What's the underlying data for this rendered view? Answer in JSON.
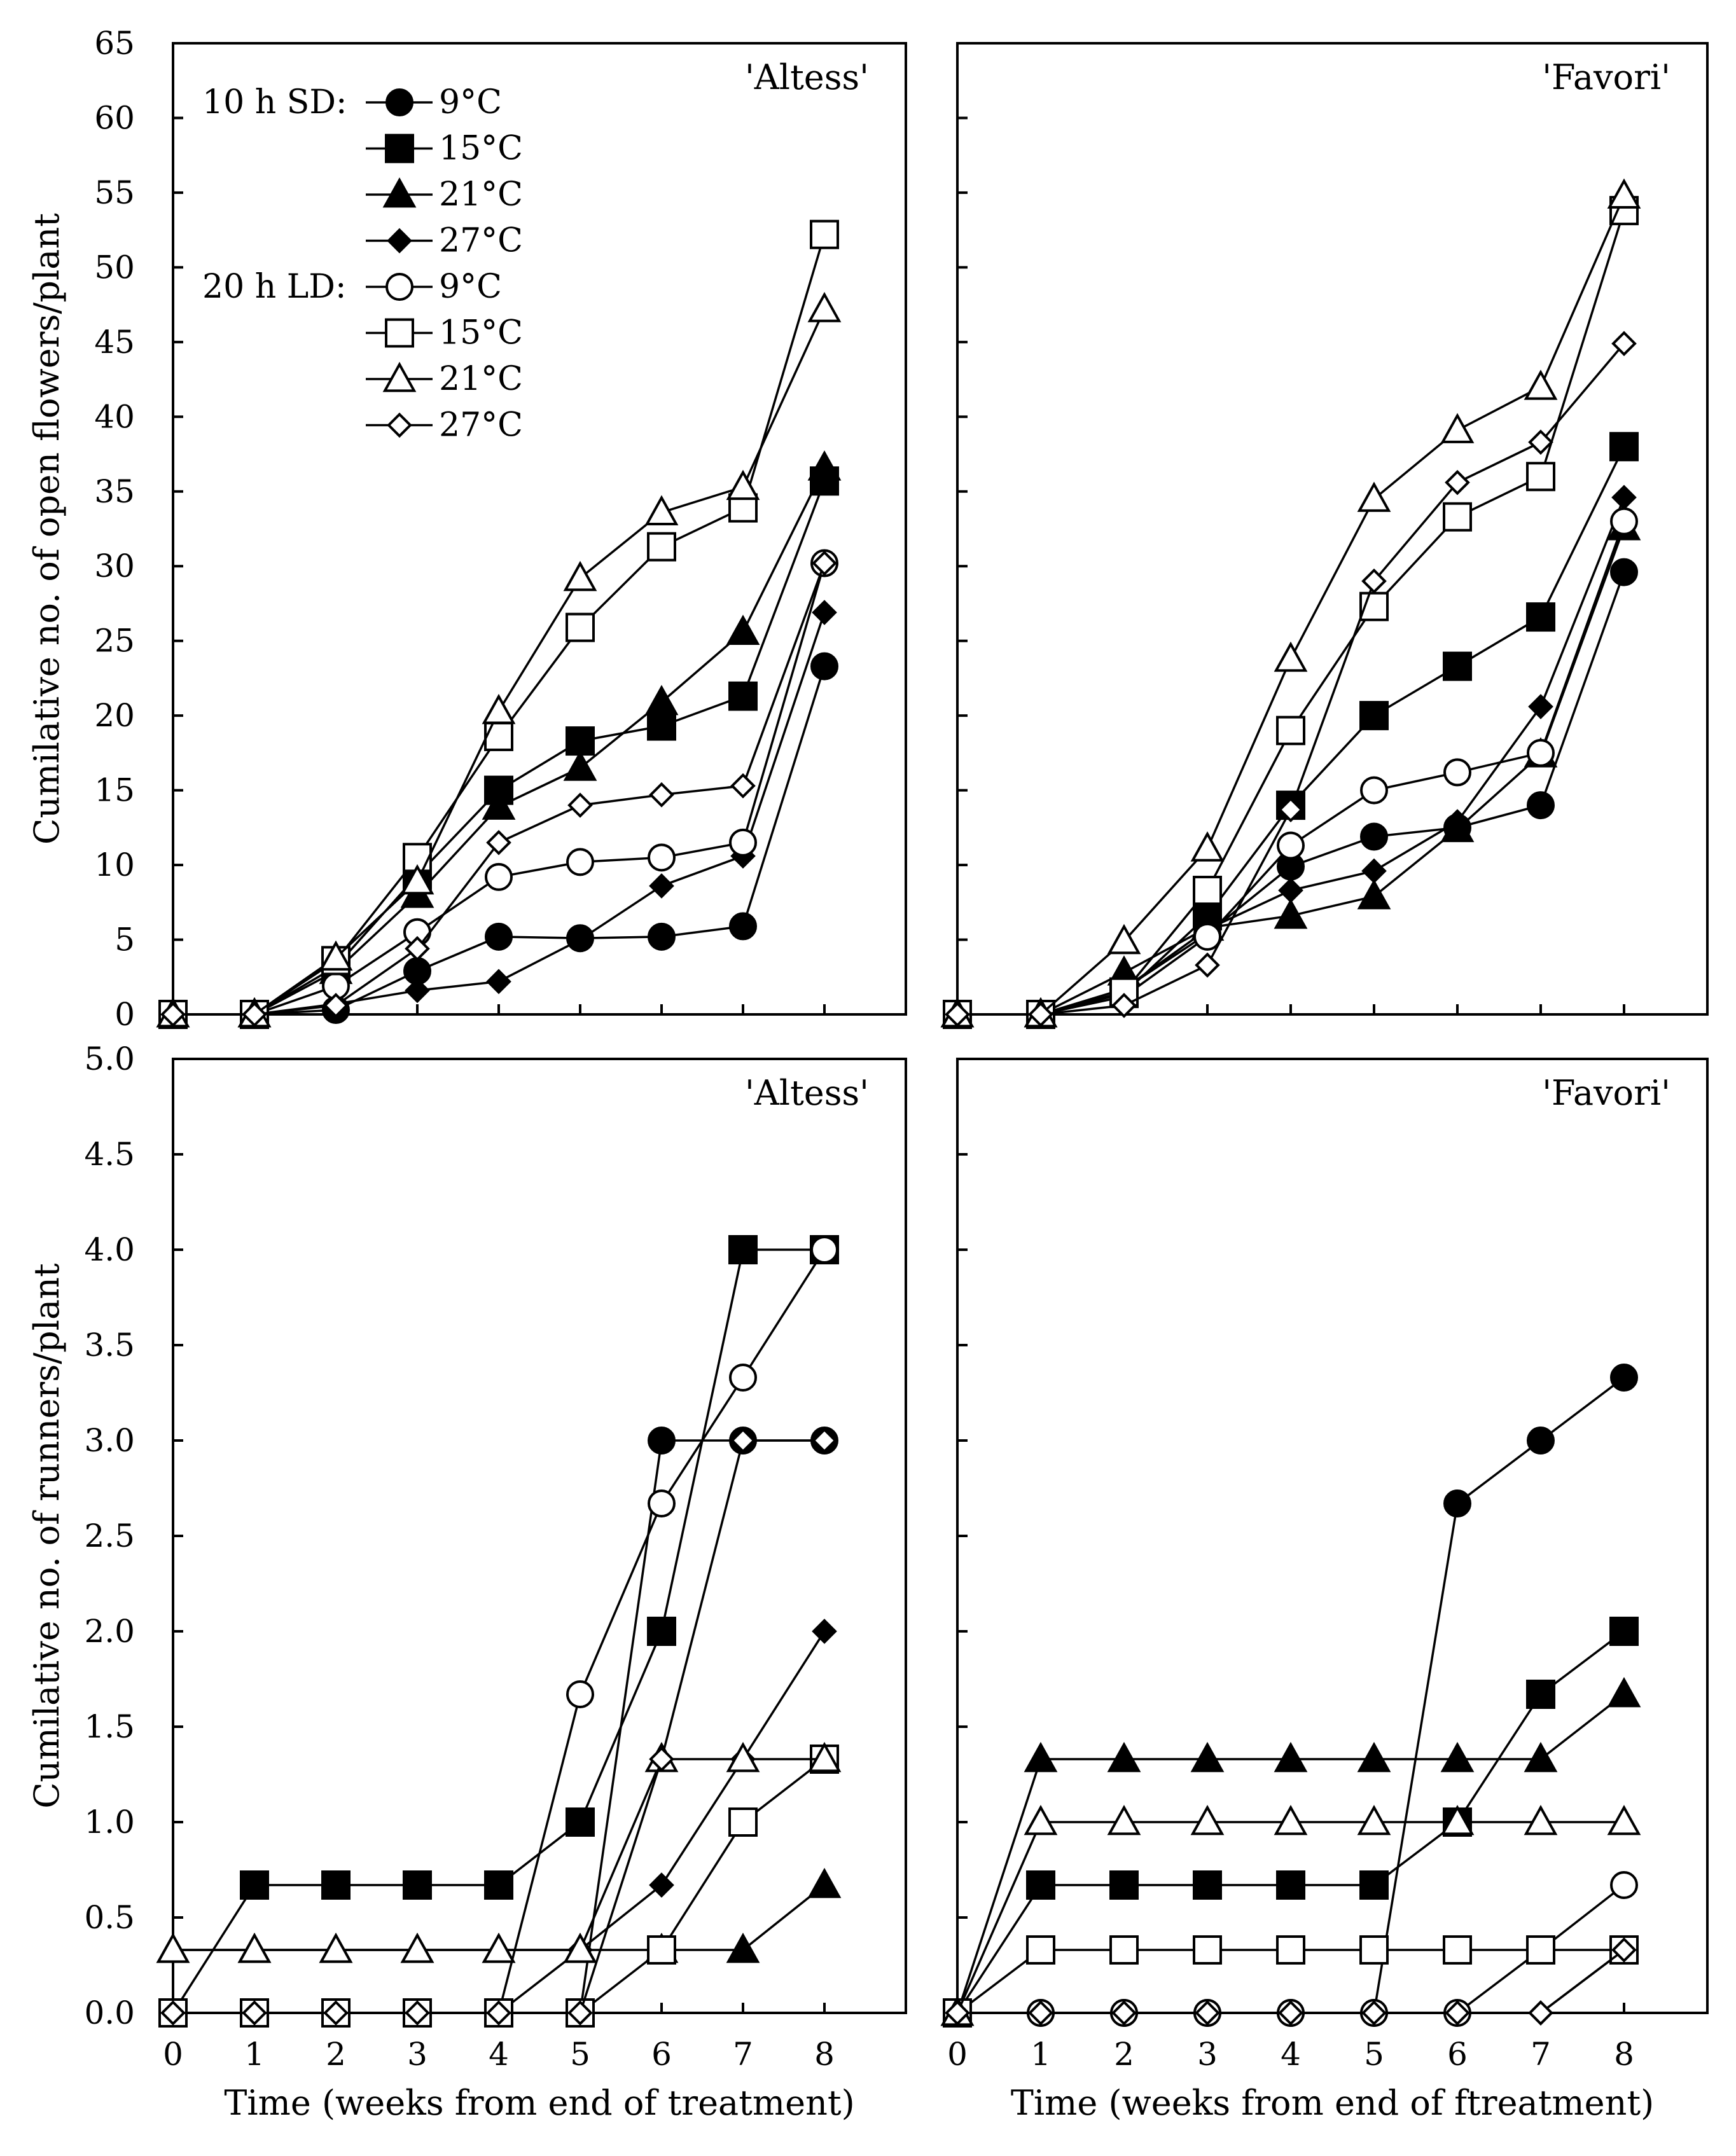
{
  "chart_data": [
    {
      "id": "altess-flowers",
      "type": "line",
      "title": "'Altess'",
      "ylabel": "Cumilative no. of open flowers/plant",
      "xlabel": "",
      "ylim": [
        0,
        65
      ],
      "yticks": [
        0,
        5,
        10,
        15,
        20,
        25,
        30,
        35,
        40,
        45,
        50,
        55,
        60,
        65
      ],
      "ytick_labels": [
        "0",
        "5",
        "10",
        "15",
        "20",
        "25",
        "30",
        "35",
        "40",
        "45",
        "50",
        "55",
        "60",
        "65"
      ],
      "xlim": [
        0,
        9
      ],
      "x": [
        0,
        1,
        2,
        3,
        4,
        5,
        6,
        7,
        8
      ],
      "xtick_labels": [],
      "legend": {
        "sd_title": "10 h SD:",
        "ld_title": "20 h LD:",
        "labels": [
          "9°C",
          "15°C",
          "21°C",
          "27°C",
          "9°C",
          "15°C",
          "21°C",
          "27°C"
        ]
      },
      "series": [
        {
          "name": "10 h SD 9°C",
          "marker": "circle",
          "filled": true,
          "values": [
            0,
            0,
            0.3,
            2.9,
            5.2,
            5.1,
            5.2,
            5.9,
            23.3
          ]
        },
        {
          "name": "10 h SD 15°C",
          "marker": "square",
          "filled": true,
          "values": [
            0,
            0,
            3.2,
            9.3,
            15.0,
            18.3,
            19.3,
            21.3,
            35.7
          ]
        },
        {
          "name": "10 h SD 21°C",
          "marker": "triangle",
          "filled": true,
          "values": [
            0,
            0,
            2.9,
            8.0,
            13.9,
            16.5,
            20.9,
            25.6,
            36.6
          ]
        },
        {
          "name": "10 h SD 27°C",
          "marker": "diamond",
          "filled": true,
          "values": [
            0,
            0,
            0.7,
            1.6,
            2.2,
            5.0,
            8.6,
            10.6,
            26.9
          ]
        },
        {
          "name": "20 h LD 9°C",
          "marker": "circle",
          "filled": false,
          "values": [
            0,
            0,
            1.9,
            5.5,
            9.2,
            10.2,
            10.5,
            11.5,
            30.2
          ]
        },
        {
          "name": "20 h LD 15°C",
          "marker": "square",
          "filled": false,
          "values": [
            0,
            0,
            3.6,
            10.5,
            18.6,
            25.9,
            31.3,
            33.9,
            52.2
          ]
        },
        {
          "name": "20 h LD 21°C",
          "marker": "triangle",
          "filled": false,
          "values": [
            0,
            0,
            3.8,
            8.9,
            20.3,
            29.2,
            33.6,
            35.3,
            47.2
          ]
        },
        {
          "name": "20 h LD 27°C",
          "marker": "diamond",
          "filled": false,
          "values": [
            0,
            0,
            0.6,
            4.4,
            11.5,
            14.0,
            14.7,
            15.3,
            30.2
          ]
        }
      ]
    },
    {
      "id": "favori-flowers",
      "type": "line",
      "title": "'Favori'",
      "ylabel": "",
      "xlabel": "",
      "ylim": [
        0,
        65
      ],
      "yticks": [
        0,
        5,
        10,
        15,
        20,
        25,
        30,
        35,
        40,
        45,
        50,
        55,
        60,
        65
      ],
      "ytick_labels": [],
      "xlim": [
        0,
        9
      ],
      "x": [
        0,
        1,
        2,
        3,
        4,
        5,
        6,
        7,
        8
      ],
      "xtick_labels": [],
      "series": [
        {
          "name": "10 h SD 9°C",
          "marker": "circle",
          "filled": true,
          "values": [
            0,
            0,
            1.7,
            5.4,
            9.9,
            11.9,
            12.5,
            14.0,
            29.6
          ]
        },
        {
          "name": "10 h SD 15°C",
          "marker": "square",
          "filled": true,
          "values": [
            0,
            0,
            1.4,
            6.6,
            14.0,
            20.0,
            23.3,
            26.6,
            38.0
          ]
        },
        {
          "name": "10 h SD 21°C",
          "marker": "triangle",
          "filled": true,
          "values": [
            0,
            0,
            2.8,
            5.8,
            6.6,
            7.9,
            12.4,
            17.4,
            32.6
          ]
        },
        {
          "name": "10 h SD 27°C",
          "marker": "diamond",
          "filled": true,
          "values": [
            0,
            0,
            1.7,
            5.7,
            8.3,
            9.6,
            12.9,
            20.6,
            34.6
          ]
        },
        {
          "name": "20 h LD 9°C",
          "marker": "circle",
          "filled": false,
          "values": [
            0,
            0,
            1.2,
            5.2,
            11.3,
            15.0,
            16.2,
            17.5,
            33.0
          ]
        },
        {
          "name": "20 h LD 15°C",
          "marker": "square",
          "filled": false,
          "values": [
            0,
            0,
            1.5,
            8.3,
            19.0,
            27.3,
            33.3,
            36.0,
            53.8
          ]
        },
        {
          "name": "20 h LD 21°C",
          "marker": "triangle",
          "filled": false,
          "values": [
            0,
            0,
            4.9,
            11.1,
            23.8,
            34.5,
            39.1,
            42.0,
            54.8
          ]
        },
        {
          "name": "20 h LD 27°C",
          "marker": "diamond",
          "filled": false,
          "values": [
            0,
            0,
            0.6,
            3.3,
            13.7,
            29.0,
            35.6,
            38.3,
            44.9
          ]
        }
      ]
    },
    {
      "id": "altess-runners",
      "type": "line",
      "title": "'Altess'",
      "ylabel": "Cumilative no. of runners/plant",
      "xlabel": "Time (weeks from end  of treatment)",
      "ylim": [
        0,
        5
      ],
      "yticks": [
        0,
        0.5,
        1,
        1.5,
        2,
        2.5,
        3,
        3.5,
        4,
        4.5,
        5
      ],
      "ytick_labels": [
        "0.0",
        "0.5",
        "1.0",
        "1.5",
        "2.0",
        "2.5",
        "3.0",
        "3.5",
        "4.0",
        "4.5",
        "5.0"
      ],
      "xlim": [
        0,
        9
      ],
      "x": [
        0,
        1,
        2,
        3,
        4,
        5,
        6,
        7,
        8
      ],
      "xtick_labels": [
        "0",
        "1",
        "2",
        "3",
        "4",
        "5",
        "6",
        "7",
        "8"
      ],
      "series": [
        {
          "name": "10 h SD 9°C",
          "marker": "circle",
          "filled": true,
          "values": [
            0,
            0,
            0,
            0,
            0,
            0,
            3.0,
            3.0,
            3.0
          ]
        },
        {
          "name": "10 h SD 15°C",
          "marker": "square",
          "filled": true,
          "values": [
            0,
            0.67,
            0.67,
            0.67,
            0.67,
            1.0,
            2.0,
            4.0,
            4.0
          ]
        },
        {
          "name": "10 h SD 21°C",
          "marker": "triangle",
          "filled": true,
          "values": [
            0.33,
            0.33,
            0.33,
            0.33,
            0.33,
            0.33,
            0.33,
            0.33,
            0.67
          ]
        },
        {
          "name": "10 h SD 27°C",
          "marker": "diamond",
          "filled": true,
          "values": [
            0,
            0,
            0,
            0,
            0,
            0.33,
            0.67,
            1.33,
            2.0
          ]
        },
        {
          "name": "20 h LD 9°C",
          "marker": "circle",
          "filled": false,
          "values": [
            0,
            0,
            0,
            0,
            0,
            1.67,
            2.67,
            3.33,
            4.0
          ]
        },
        {
          "name": "20 h LD 15°C",
          "marker": "square",
          "filled": false,
          "values": [
            0,
            0,
            0,
            0,
            0,
            0,
            0.33,
            1.0,
            1.33
          ]
        },
        {
          "name": "20 h LD 21°C",
          "marker": "triangle",
          "filled": false,
          "values": [
            0.33,
            0.33,
            0.33,
            0.33,
            0.33,
            0.33,
            1.33,
            1.33,
            1.33
          ]
        },
        {
          "name": "20 h LD 27°C",
          "marker": "diamond",
          "filled": false,
          "values": [
            0,
            0,
            0,
            0,
            0,
            0,
            1.33,
            3.0,
            3.0
          ]
        }
      ]
    },
    {
      "id": "favori-runners",
      "type": "line",
      "title": "'Favori'",
      "ylabel": "",
      "xlabel": "Time (weeks from end  of ftreatment)",
      "ylim": [
        0,
        5
      ],
      "yticks": [
        0,
        0.5,
        1,
        1.5,
        2,
        2.5,
        3,
        3.5,
        4,
        4.5,
        5
      ],
      "ytick_labels": [],
      "xlim": [
        0,
        9
      ],
      "x": [
        0,
        1,
        2,
        3,
        4,
        5,
        6,
        7,
        8
      ],
      "xtick_labels": [
        "0",
        "1",
        "2",
        "3",
        "4",
        "5",
        "6",
        "7",
        "8"
      ],
      "series": [
        {
          "name": "10 h SD 9°C",
          "marker": "circle",
          "filled": true,
          "values": [
            0,
            0,
            0,
            0,
            0,
            0,
            2.67,
            3.0,
            3.33
          ]
        },
        {
          "name": "10 h SD 15°C",
          "marker": "square",
          "filled": true,
          "values": [
            0,
            0.67,
            0.67,
            0.67,
            0.67,
            0.67,
            1.0,
            1.67,
            2.0
          ]
        },
        {
          "name": "10 h SD 21°C",
          "marker": "triangle",
          "filled": true,
          "values": [
            0,
            1.33,
            1.33,
            1.33,
            1.33,
            1.33,
            1.33,
            1.33,
            1.67
          ]
        },
        {
          "name": "10 h SD 27°C",
          "marker": "diamond",
          "filled": true,
          "values": [
            0,
            0,
            0,
            0,
            0,
            0,
            0,
            0,
            0.33
          ]
        },
        {
          "name": "20 h LD 9°C",
          "marker": "circle",
          "filled": false,
          "values": [
            0,
            0,
            0,
            0,
            0,
            0,
            0,
            0.33,
            0.67
          ]
        },
        {
          "name": "20 h LD 15°C",
          "marker": "square",
          "filled": false,
          "values": [
            0,
            0.33,
            0.33,
            0.33,
            0.33,
            0.33,
            0.33,
            0.33,
            0.33
          ]
        },
        {
          "name": "20 h LD 21°C",
          "marker": "triangle",
          "filled": false,
          "values": [
            0,
            1.0,
            1.0,
            1.0,
            1.0,
            1.0,
            1.0,
            1.0,
            1.0
          ]
        },
        {
          "name": "20 h LD 27°C",
          "marker": "diamond",
          "filled": false,
          "values": [
            0,
            0,
            0,
            0,
            0,
            0,
            0,
            0,
            0.33
          ]
        }
      ]
    }
  ]
}
